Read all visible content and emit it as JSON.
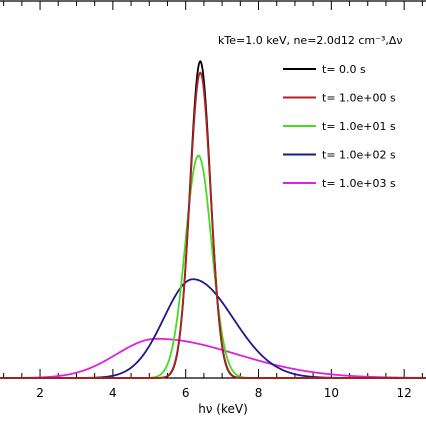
{
  "chart_data": {
    "type": "line",
    "title": "kTe=1.0 keV, ne=2.0d12 cm⁻³,Δν",
    "xlabel": "hν (keV)",
    "ylabel": "",
    "xlim": [
      0.9,
      12.6
    ],
    "ylim": [
      0,
      1.0
    ],
    "x_ticks": [
      2,
      4,
      6,
      8,
      10,
      12
    ],
    "x_tick_labels": [
      "2",
      "4",
      "6",
      "8",
      "10",
      "12"
    ],
    "grid": false,
    "legend_position": "top-right",
    "series": [
      {
        "name": "t= 0.0 s",
        "color": "#000000",
        "profile": "gaussian",
        "peak": 0.84,
        "center": 6.4,
        "sigma": 0.28
      },
      {
        "name": "t= 1.0e+00 s",
        "color": "#b22222",
        "profile": "gaussian",
        "peak": 0.81,
        "center": 6.4,
        "sigma": 0.285
      },
      {
        "name": "t= 1.0e+01 s",
        "color": "#44dd22",
        "profile": "gaussian",
        "peak": 0.59,
        "center": 6.35,
        "sigma": 0.36
      },
      {
        "name": "t= 1.0e+02 s",
        "color": "#1a1a8c",
        "profile": "split-gaussian",
        "peak": 0.262,
        "center": 6.2,
        "sigma_left": 0.8,
        "sigma_right": 1.1
      },
      {
        "name": "t= 1.0e+03 s",
        "color": "#dd22dd",
        "profile": "split-gaussian",
        "peak": 0.104,
        "center": 5.2,
        "sigma_left": 1.1,
        "sigma_right": 2.2
      }
    ]
  }
}
